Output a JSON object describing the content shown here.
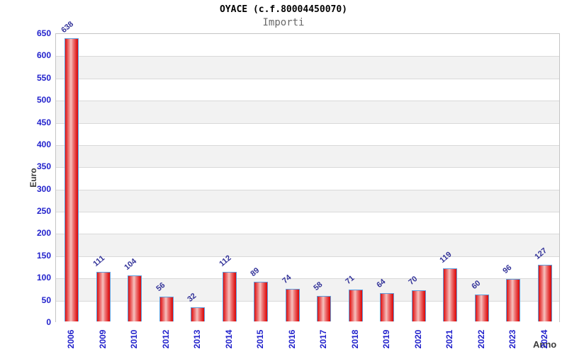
{
  "chart_data": {
    "type": "bar",
    "title": "OYACE (c.f.80004450070)",
    "subtitle": "Importi",
    "xlabel": "Anno",
    "ylabel": "Euro",
    "categories": [
      "2006",
      "2009",
      "2010",
      "2012",
      "2013",
      "2014",
      "2015",
      "2016",
      "2017",
      "2018",
      "2019",
      "2020",
      "2021",
      "2022",
      "2023",
      "2024"
    ],
    "values": [
      638,
      111,
      104,
      56,
      32,
      112,
      89,
      74,
      58,
      71,
      64,
      70,
      119,
      60,
      96,
      127
    ],
    "ylim": [
      0,
      650
    ],
    "ytick_step": 50,
    "yticks": [
      0,
      50,
      100,
      150,
      200,
      250,
      300,
      350,
      400,
      450,
      500,
      550,
      600,
      650
    ],
    "grid": true,
    "legend": false,
    "value_labels_rotated": true,
    "colors": {
      "bar_fill_edge": "#dd1010",
      "bar_fill_mid": "#ee7a7a",
      "bar_fill_highlight": "#f6c2be",
      "bar_border": "#5e9edd",
      "tick_label": "#2222cc",
      "value_label": "#333399",
      "axis_label": "#3a3a3a",
      "band_gray": "#f2f2f2",
      "gridline": "#d9d9d9",
      "plot_border": "#c4c4c4",
      "title": "#000000",
      "subtitle": "#696969"
    }
  }
}
